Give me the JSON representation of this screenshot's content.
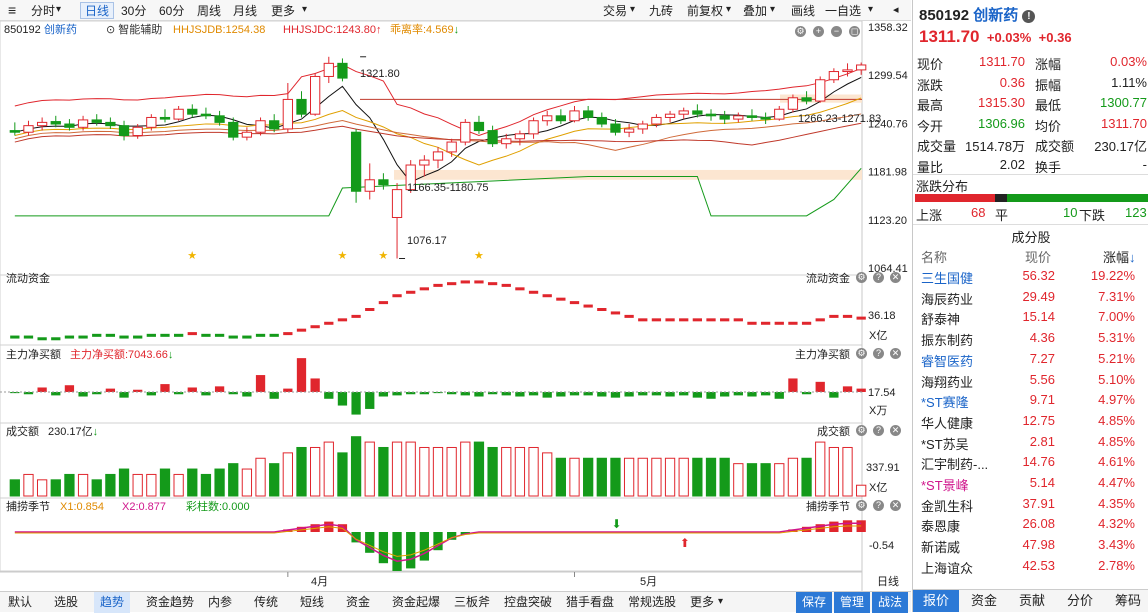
{
  "toolbar": {
    "left": [
      {
        "label": "分时",
        "dd": true
      },
      {
        "label": "日线",
        "active": true
      },
      {
        "label": "30分"
      },
      {
        "label": "60分"
      },
      {
        "label": "周线"
      },
      {
        "label": "月线"
      },
      {
        "label": "更多",
        "dd": true
      }
    ],
    "right": [
      {
        "label": "交易",
        "dd": true
      },
      {
        "label": "九砖"
      },
      {
        "label": "前复权",
        "dd": true
      },
      {
        "label": "叠加",
        "dd": true
      },
      {
        "label": "画线"
      },
      {
        "label": "一自选",
        "dd": true
      }
    ]
  },
  "main_header": {
    "code": "850192",
    "name": "创新药",
    "assist": "智能辅助",
    "hj1": "HHJSJDB:1254.38",
    "hj2": "HHJSJDC:1243.80",
    "ratio": "乖离率:4.569"
  },
  "price_axis": [
    "1358.32",
    "1299.54",
    "1240.76",
    "1181.98",
    "1123.20",
    "1064.41"
  ],
  "annotations": {
    "high": "1321.80",
    "low": "1076.17",
    "range1": "1166.35-1180.75",
    "range2": "1266.23-1271.83"
  },
  "panels": {
    "flow": {
      "title": "流动资金",
      "title_r": "流动资金",
      "value": "36.18",
      "unit": "X亿"
    },
    "net": {
      "title": "主力净买额",
      "series": "主力净买额:7043.66",
      "title_r": "主力净买额",
      "value": "17.54",
      "unit": "X万"
    },
    "vol": {
      "title": "成交额",
      "value_label": "230.17亿",
      "title_r": "成交额",
      "value": "337.91",
      "unit": "X亿"
    },
    "season": {
      "title": "捕捞季节",
      "x1": "X1:0.854",
      "x2": "X2:0.877",
      "bar": "彩柱数:0.000",
      "title_r": "捕捞季节",
      "value": "-0.54"
    }
  },
  "x_axis": {
    "apr": "4月",
    "may": "5月",
    "period": "日线"
  },
  "bottom_tabs": [
    "默认",
    "选股",
    "趋势",
    "资金趋势",
    "内参",
    "传统",
    "短线",
    "资金",
    "资金起爆",
    "三板斧",
    "控盘突破",
    "猎手看盘",
    "常规选股",
    "更多"
  ],
  "bottom_active": "趋势",
  "bottom_right": [
    "保存",
    "管理",
    "战法"
  ],
  "side": {
    "code": "850192",
    "name": "创新药",
    "price": "1311.70",
    "chg_pct": "+0.03%",
    "chg": "+0.36",
    "quote": [
      [
        "现价",
        "1311.70",
        "涨幅",
        "0.03%"
      ],
      [
        "涨跌",
        "0.36",
        "振幅",
        "1.11%"
      ],
      [
        "最高",
        "1315.30",
        "最低",
        "1300.77"
      ],
      [
        "今开",
        "1306.96",
        "均价",
        "1311.70"
      ],
      [
        "成交量",
        "1514.78万",
        "成交额",
        "230.17亿"
      ],
      [
        "量比",
        "2.02",
        "换手",
        "-"
      ]
    ],
    "dist_title": "涨跌分布",
    "dist": {
      "up_label": "上涨",
      "up": "68",
      "flat_label": "平",
      "flat": "10",
      "down_label": "下跌",
      "down": "123"
    },
    "comp_title": "成分股",
    "cols": [
      "名称",
      "现价",
      "涨幅"
    ],
    "stocks": [
      [
        "三生国健",
        "56.32",
        "19.22%"
      ],
      [
        "海辰药业",
        "29.49",
        "7.31%"
      ],
      [
        "舒泰神",
        "15.14",
        "7.00%"
      ],
      [
        "振东制药",
        "4.36",
        "5.31%"
      ],
      [
        "睿智医药",
        "7.27",
        "5.21%"
      ],
      [
        "海翔药业",
        "5.56",
        "5.10%"
      ],
      [
        "*ST赛隆",
        "9.71",
        "4.97%"
      ],
      [
        "华人健康",
        "12.75",
        "4.85%"
      ],
      [
        "*ST苏吴",
        "2.81",
        "4.85%"
      ],
      [
        "汇宇制药-...",
        "14.76",
        "4.61%"
      ],
      [
        "*ST景峰",
        "5.14",
        "4.47%"
      ],
      [
        "金凯生科",
        "37.91",
        "4.35%"
      ],
      [
        "泰恩康",
        "26.08",
        "4.32%"
      ],
      [
        "新诺威",
        "47.98",
        "3.43%"
      ],
      [
        "上海谊众",
        "42.53",
        "2.78%"
      ]
    ],
    "tabs": [
      "报价",
      "资金",
      "贡献",
      "分价",
      "筹码"
    ]
  },
  "chart_data": {
    "type": "candlestick",
    "ylim": [
      1064.41,
      1358.32
    ],
    "candles": [
      [
        1232,
        1242,
        1226,
        1230
      ],
      [
        1230,
        1244,
        1226,
        1238
      ],
      [
        1238,
        1248,
        1232,
        1242
      ],
      [
        1243,
        1250,
        1236,
        1240
      ],
      [
        1240,
        1246,
        1232,
        1236
      ],
      [
        1236,
        1250,
        1232,
        1245
      ],
      [
        1245,
        1252,
        1238,
        1242
      ],
      [
        1242,
        1248,
        1234,
        1238
      ],
      [
        1238,
        1244,
        1220,
        1226
      ],
      [
        1226,
        1240,
        1222,
        1236
      ],
      [
        1236,
        1252,
        1232,
        1248
      ],
      [
        1248,
        1258,
        1242,
        1246
      ],
      [
        1246,
        1262,
        1244,
        1258
      ],
      [
        1258,
        1264,
        1248,
        1252
      ],
      [
        1252,
        1260,
        1246,
        1250
      ],
      [
        1250,
        1256,
        1238,
        1242
      ],
      [
        1242,
        1248,
        1220,
        1224
      ],
      [
        1224,
        1236,
        1220,
        1230
      ],
      [
        1230,
        1248,
        1226,
        1244
      ],
      [
        1244,
        1252,
        1230,
        1234
      ],
      [
        1234,
        1290,
        1230,
        1270
      ],
      [
        1270,
        1280,
        1248,
        1252
      ],
      [
        1252,
        1302,
        1250,
        1298
      ],
      [
        1298,
        1322,
        1290,
        1314
      ],
      [
        1314,
        1320,
        1292,
        1296
      ],
      [
        1230,
        1234,
        1144,
        1158
      ],
      [
        1158,
        1192,
        1148,
        1172
      ],
      [
        1172,
        1180,
        1160,
        1166
      ],
      [
        1126,
        1168,
        1076,
        1160
      ],
      [
        1160,
        1196,
        1156,
        1190
      ],
      [
        1190,
        1202,
        1176,
        1196
      ],
      [
        1196,
        1212,
        1186,
        1206
      ],
      [
        1206,
        1222,
        1200,
        1218
      ],
      [
        1218,
        1246,
        1214,
        1242
      ],
      [
        1242,
        1250,
        1228,
        1232
      ],
      [
        1232,
        1238,
        1212,
        1216
      ],
      [
        1216,
        1228,
        1210,
        1222
      ],
      [
        1222,
        1232,
        1214,
        1228
      ],
      [
        1228,
        1248,
        1222,
        1244
      ],
      [
        1244,
        1256,
        1238,
        1250
      ],
      [
        1250,
        1258,
        1240,
        1244
      ],
      [
        1244,
        1262,
        1242,
        1256
      ],
      [
        1256,
        1262,
        1244,
        1248
      ],
      [
        1248,
        1254,
        1236,
        1240
      ],
      [
        1240,
        1246,
        1226,
        1230
      ],
      [
        1230,
        1240,
        1224,
        1234
      ],
      [
        1234,
        1244,
        1228,
        1240
      ],
      [
        1240,
        1252,
        1236,
        1248
      ],
      [
        1248,
        1256,
        1242,
        1252
      ],
      [
        1252,
        1260,
        1246,
        1256
      ],
      [
        1256,
        1264,
        1248,
        1252
      ],
      [
        1252,
        1258,
        1244,
        1250
      ],
      [
        1250,
        1256,
        1240,
        1246
      ],
      [
        1246,
        1254,
        1242,
        1250
      ],
      [
        1250,
        1258,
        1244,
        1248
      ],
      [
        1248,
        1254,
        1240,
        1246
      ],
      [
        1246,
        1262,
        1244,
        1258
      ],
      [
        1258,
        1276,
        1254,
        1272
      ],
      [
        1272,
        1280,
        1264,
        1268
      ],
      [
        1268,
        1298,
        1266,
        1294
      ],
      [
        1294,
        1308,
        1290,
        1304
      ],
      [
        1304,
        1314,
        1298,
        1306
      ],
      [
        1306,
        1315,
        1300,
        1312
      ]
    ],
    "stars": [
      13,
      24,
      27,
      34
    ],
    "flow": [
      -2,
      -2,
      -3,
      -3,
      -2,
      -2,
      -1,
      -1,
      -2,
      -2,
      -1,
      -1,
      -1,
      0,
      -1,
      -1,
      -2,
      -2,
      -1,
      -1,
      0,
      2,
      4,
      6,
      8,
      10,
      14,
      18,
      22,
      24,
      26,
      28,
      29,
      30,
      30,
      29,
      28,
      26,
      24,
      22,
      20,
      18,
      16,
      14,
      12,
      10,
      8,
      8,
      8,
      8,
      8,
      8,
      8,
      8,
      6,
      6,
      6,
      6,
      6,
      8,
      10,
      10,
      9
    ],
    "net": [
      -2,
      -4,
      8,
      -6,
      12,
      -8,
      -4,
      6,
      -10,
      4,
      -6,
      14,
      -4,
      8,
      -6,
      10,
      -4,
      -8,
      30,
      -12,
      6,
      60,
      24,
      -12,
      -24,
      -40,
      -30,
      -8,
      -6,
      -4,
      -4,
      -2,
      -4,
      -6,
      -8,
      -4,
      -6,
      -8,
      -6,
      -10,
      -8,
      -6,
      -6,
      -8,
      -10,
      -8,
      -6,
      -6,
      -8,
      -6,
      -10,
      -12,
      -8,
      -6,
      -8,
      -6,
      -12,
      24,
      -4,
      18,
      -10,
      10,
      6
    ],
    "vol": [
      3,
      4,
      3,
      3,
      4,
      4,
      3,
      4,
      5,
      4,
      4,
      5,
      4,
      5,
      4,
      5,
      6,
      5,
      7,
      6,
      8,
      9,
      9,
      10,
      8,
      11,
      10,
      9,
      10,
      10,
      9,
      9,
      9,
      10,
      10,
      9,
      9,
      9,
      9,
      8,
      7,
      7,
      7,
      7,
      7,
      7,
      7,
      7,
      7,
      7,
      7,
      7,
      7,
      6,
      6,
      6,
      6,
      7,
      7,
      10,
      9,
      9,
      2
    ],
    "season": [
      0,
      0,
      0,
      0,
      0,
      0,
      0,
      0,
      0,
      0,
      0,
      0,
      0,
      0,
      0,
      0,
      0,
      0,
      0,
      0,
      2,
      4,
      6,
      8,
      6,
      -8,
      -16,
      -24,
      -30,
      -28,
      -22,
      -14,
      -6,
      -2,
      0,
      0,
      0,
      0,
      0,
      0,
      0,
      0,
      0,
      0,
      0,
      0,
      0,
      0,
      0,
      0,
      0,
      0,
      0,
      0,
      0,
      0,
      0,
      2,
      4,
      6,
      8,
      9,
      9
    ]
  }
}
